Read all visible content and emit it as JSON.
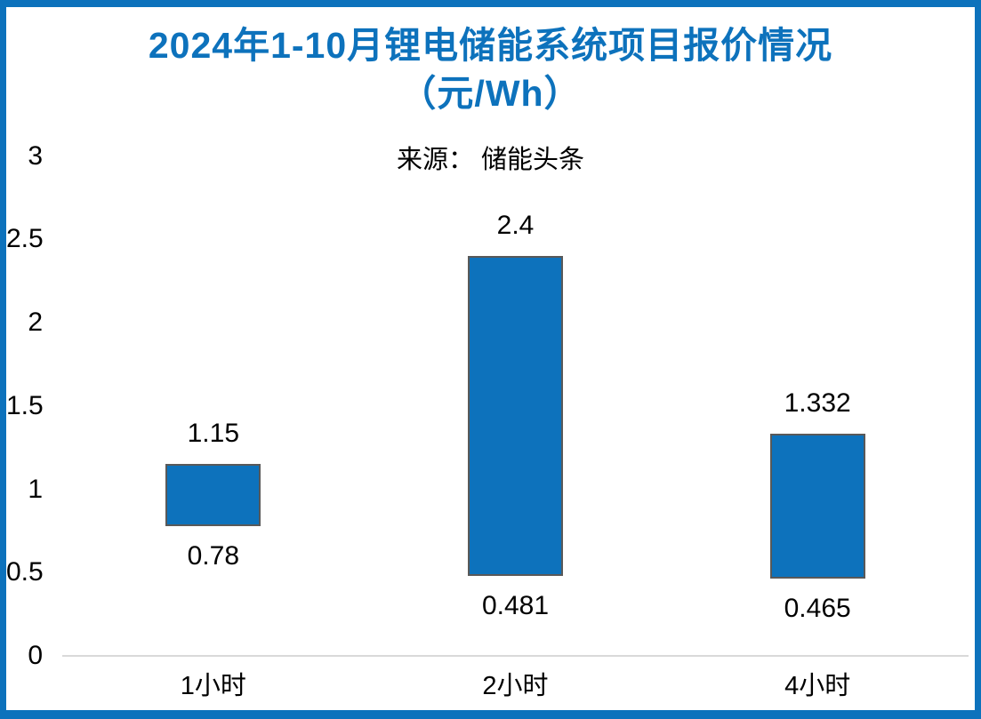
{
  "title": {
    "line1": "2024年1-10月锂电储能系统项目报价情况",
    "line2": "（元/Wh）"
  },
  "source_note": "来源： 储能头条",
  "colors": {
    "accent_blue": "#0d72bc",
    "bar_fill": "#0d72bc",
    "bar_border": "#595959",
    "zero_gridline": "#d9d9d9",
    "text": "#000000"
  },
  "chart_data": {
    "type": "bar",
    "subtype": "floating-range-column",
    "title": "2024年1-10月锂电储能系统项目报价情况（元/Wh）",
    "source": "来源：储能头条",
    "categories": [
      "1小时",
      "2小时",
      "4小时"
    ],
    "ranges": [
      {
        "low": 0.78,
        "high": 1.15
      },
      {
        "low": 0.481,
        "high": 2.4
      },
      {
        "low": 0.465,
        "high": 1.332
      }
    ],
    "value_labels": [
      {
        "high": "1.15",
        "low": "0.78"
      },
      {
        "high": "2.4",
        "low": "0.481"
      },
      {
        "high": "1.332",
        "low": "0.465"
      }
    ],
    "y_ticks": [
      {
        "label": "3",
        "value": 3
      },
      {
        "label": "2.5",
        "value": 2.5
      },
      {
        "label": "2",
        "value": 2
      },
      {
        "label": "1.5",
        "value": 1.5
      },
      {
        "label": "1",
        "value": 1
      },
      {
        "label": "0.5",
        "value": 0.5
      },
      {
        "label": "0",
        "value": 0
      }
    ],
    "ylim": [
      0,
      3
    ],
    "xlabel": "",
    "ylabel": "",
    "legend": "none",
    "grid": "zero-baseline-only"
  }
}
